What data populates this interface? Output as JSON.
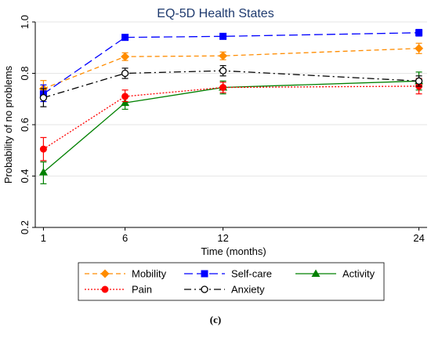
{
  "chart_data": {
    "type": "line",
    "title": "EQ-5D Health States",
    "xlabel": "Time (months)",
    "ylabel": "Probability of no problems",
    "x": [
      1,
      6,
      12,
      24
    ],
    "x_tick_labels": [
      "1",
      "6",
      "12",
      "24"
    ],
    "y_ticks": [
      0.2,
      0.4,
      0.6,
      0.8,
      1.0
    ],
    "y_tick_labels": [
      "0.2",
      "0.4",
      "0.6",
      "0.8",
      "1.0"
    ],
    "xlim": [
      0.5,
      24.5
    ],
    "ylim": [
      0.2,
      1.0
    ],
    "grid": "horizontal",
    "legend_placement": "bottom",
    "panel_label": "(c)",
    "series": [
      {
        "name": "Mobility",
        "color": "#ff8c00",
        "marker": "diamond",
        "dash": "dashed",
        "values": [
          0.74,
          0.865,
          0.868,
          0.897
        ],
        "ci_low": [
          0.71,
          0.85,
          0.853,
          0.877
        ],
        "ci_high": [
          0.772,
          0.88,
          0.883,
          0.917
        ]
      },
      {
        "name": "Self-care",
        "color": "#0000ff",
        "marker": "square",
        "dash": "longdash",
        "values": [
          0.72,
          0.94,
          0.944,
          0.958
        ],
        "ci_low": [
          0.69,
          0.93,
          0.934,
          0.945
        ],
        "ci_high": [
          0.755,
          0.95,
          0.954,
          0.971
        ]
      },
      {
        "name": "Activity",
        "color": "#008000",
        "marker": "triangle",
        "dash": "solid",
        "values": [
          0.415,
          0.685,
          0.745,
          0.77
        ],
        "ci_low": [
          0.37,
          0.66,
          0.72,
          0.735
        ],
        "ci_high": [
          0.455,
          0.71,
          0.77,
          0.805
        ]
      },
      {
        "name": "Pain",
        "color": "#ff0000",
        "marker": "circle",
        "dash": "dotted",
        "values": [
          0.505,
          0.71,
          0.745,
          0.75
        ],
        "ci_low": [
          0.46,
          0.69,
          0.725,
          0.72
        ],
        "ci_high": [
          0.55,
          0.735,
          0.765,
          0.78
        ]
      },
      {
        "name": "Anxiety",
        "color": "#000000",
        "marker": "hollow-circle",
        "dash": "dashdot",
        "values": [
          0.705,
          0.8,
          0.81,
          0.77
        ],
        "ci_low": [
          0.67,
          0.78,
          0.79,
          0.75
        ],
        "ci_high": [
          0.74,
          0.82,
          0.83,
          0.79
        ]
      }
    ]
  }
}
